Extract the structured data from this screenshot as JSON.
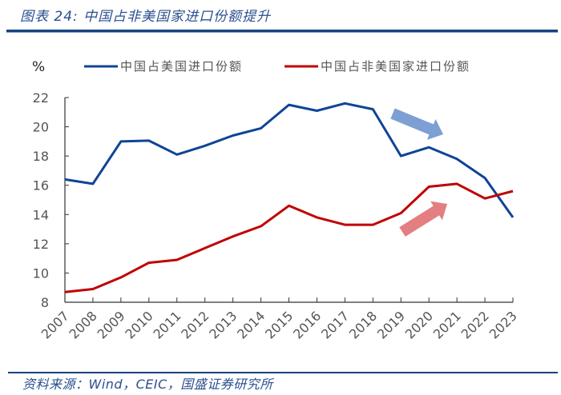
{
  "header": {
    "title_prefix": "图表",
    "title_number": "24:",
    "title_text": "中国占非美国家进口份额提升"
  },
  "footer": {
    "source_prefix": "资料来源：",
    "source_latin": "Wind，CEIC，",
    "source_suffix": "国盛证券研究所"
  },
  "chart_data": {
    "type": "line",
    "title": "中国占非美国家进口份额提升",
    "xlabel": "",
    "ylabel": "%",
    "ylim": [
      8,
      22
    ],
    "yticks": [
      8,
      10,
      12,
      14,
      16,
      18,
      20,
      22
    ],
    "grid": false,
    "legend_position": "top",
    "x": [
      "2007",
      "2008",
      "2009",
      "2010",
      "2011",
      "2012",
      "2013",
      "2014",
      "2015",
      "2016",
      "2017",
      "2018",
      "2019",
      "2020",
      "2021",
      "2022",
      "2023"
    ],
    "series": [
      {
        "name": "中国占美国进口份额",
        "color": "#0f4496",
        "values": [
          16.4,
          16.1,
          19.0,
          19.05,
          18.1,
          18.7,
          19.4,
          19.9,
          21.5,
          21.1,
          21.6,
          21.2,
          18.0,
          18.6,
          17.8,
          16.5,
          13.8
        ]
      },
      {
        "name": "中国占非美国家进口份额",
        "color": "#c00000",
        "values": [
          8.7,
          8.9,
          9.7,
          10.7,
          10.9,
          11.7,
          12.5,
          13.2,
          14.6,
          13.8,
          13.3,
          13.3,
          14.1,
          15.9,
          16.1,
          15.1,
          15.6
        ]
      }
    ],
    "annotations": [
      {
        "type": "arrow",
        "direction": "down-right",
        "color": "#7d9fd3",
        "note": "US share declining"
      },
      {
        "type": "arrow",
        "direction": "up-right",
        "color": "#e37f82",
        "note": "non-US share rising"
      }
    ]
  }
}
